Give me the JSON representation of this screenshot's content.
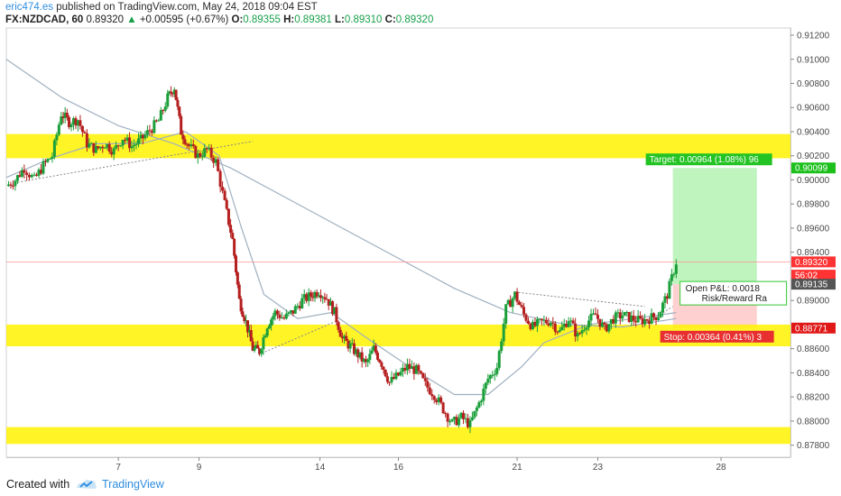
{
  "header": {
    "author": "eric474.es",
    "published": " published on TradingView.com, May 24, 2018 09:04 EST",
    "symbol": "FX:NZDCAD, 60",
    "last": "0.89320",
    "change_arrow": "▲",
    "change": "+0.00595 (+0.67%)",
    "o_label": "O:",
    "o_val": "0.89355",
    "h_label": "H:",
    "h_val": "0.89381",
    "l_label": "L:",
    "l_val": "0.89310",
    "c_label": "C:",
    "c_val": "0.89320"
  },
  "chart_data": {
    "type": "candlestick",
    "ylim": [
      0.877,
      0.9126
    ],
    "xlim": [
      0,
      70
    ],
    "y_ticks": [
      {
        "label": "0.91200",
        "value": 0.912
      },
      {
        "label": "0.91000",
        "value": 0.91
      },
      {
        "label": "0.90800",
        "value": 0.908
      },
      {
        "label": "0.90600",
        "value": 0.906
      },
      {
        "label": "0.90400",
        "value": 0.904
      },
      {
        "label": "0.90200",
        "value": 0.902
      },
      {
        "label": "0.90000",
        "value": 0.9
      },
      {
        "label": "0.89800",
        "value": 0.898
      },
      {
        "label": "0.89600",
        "value": 0.896
      },
      {
        "label": "0.89400",
        "value": 0.894
      },
      {
        "label": "0.89000",
        "value": 0.89
      },
      {
        "label": "0.88600",
        "value": 0.886
      },
      {
        "label": "0.88400",
        "value": 0.884
      },
      {
        "label": "0.88200",
        "value": 0.882
      },
      {
        "label": "0.88000",
        "value": 0.88
      },
      {
        "label": "0.87800",
        "value": 0.878
      }
    ],
    "x_ticks": [
      {
        "label": "7",
        "x": 10
      },
      {
        "label": "9",
        "x": 17.2
      },
      {
        "label": "14",
        "x": 28
      },
      {
        "label": "16",
        "x": 35
      },
      {
        "label": "21",
        "x": 45.6
      },
      {
        "label": "23",
        "x": 52.8
      },
      {
        "label": "28",
        "x": 63.8
      }
    ],
    "price_path": [
      [
        0,
        0.8995
      ],
      [
        0.8,
        0.9
      ],
      [
        1.6,
        0.901
      ],
      [
        2.5,
        0.9
      ],
      [
        3.3,
        0.9012
      ],
      [
        4.1,
        0.902
      ],
      [
        4.9,
        0.9055
      ],
      [
        5.6,
        0.9048
      ],
      [
        6.4,
        0.905
      ],
      [
        7.2,
        0.903
      ],
      [
        8.0,
        0.9025
      ],
      [
        8.8,
        0.903
      ],
      [
        9.6,
        0.9024
      ],
      [
        10.4,
        0.9035
      ],
      [
        11.2,
        0.9028
      ],
      [
        12.0,
        0.9033
      ],
      [
        12.8,
        0.9041
      ],
      [
        13.6,
        0.9049
      ],
      [
        14.4,
        0.9068
      ],
      [
        15.0,
        0.9077
      ],
      [
        15.6,
        0.904
      ],
      [
        16.3,
        0.9028
      ],
      [
        17.1,
        0.902
      ],
      [
        17.9,
        0.9025
      ],
      [
        18.7,
        0.9015
      ],
      [
        19.5,
        0.898
      ],
      [
        20.2,
        0.895
      ],
      [
        20.8,
        0.89
      ],
      [
        21.4,
        0.8882
      ],
      [
        22.0,
        0.886
      ],
      [
        22.6,
        0.8858
      ],
      [
        23.3,
        0.888
      ],
      [
        24.0,
        0.889
      ],
      [
        24.8,
        0.8885
      ],
      [
        25.6,
        0.8891
      ],
      [
        26.4,
        0.89
      ],
      [
        27.2,
        0.8904
      ],
      [
        27.9,
        0.8908
      ],
      [
        28.6,
        0.8902
      ],
      [
        29.3,
        0.889
      ],
      [
        30.0,
        0.8868
      ],
      [
        30.7,
        0.8862
      ],
      [
        31.4,
        0.8855
      ],
      [
        32.1,
        0.8847
      ],
      [
        32.8,
        0.886
      ],
      [
        33.5,
        0.8848
      ],
      [
        34.2,
        0.8832
      ],
      [
        35.0,
        0.8838
      ],
      [
        35.8,
        0.8845
      ],
      [
        36.6,
        0.8842
      ],
      [
        37.4,
        0.883
      ],
      [
        38.2,
        0.8822
      ],
      [
        39.0,
        0.881
      ],
      [
        39.8,
        0.8798
      ],
      [
        40.6,
        0.8803
      ],
      [
        41.4,
        0.8797
      ],
      [
        42.2,
        0.8815
      ],
      [
        43.0,
        0.8835
      ],
      [
        43.8,
        0.8845
      ],
      [
        44.6,
        0.8893
      ],
      [
        45.4,
        0.8905
      ],
      [
        46.2,
        0.8888
      ],
      [
        47.0,
        0.8878
      ],
      [
        47.8,
        0.8882
      ],
      [
        48.6,
        0.8883
      ],
      [
        49.4,
        0.8874
      ],
      [
        50.2,
        0.8885
      ],
      [
        51.0,
        0.887
      ],
      [
        51.8,
        0.8882
      ],
      [
        52.6,
        0.8888
      ],
      [
        53.4,
        0.8876
      ],
      [
        54.2,
        0.8885
      ],
      [
        55.0,
        0.8888
      ],
      [
        55.8,
        0.8885
      ],
      [
        56.6,
        0.8883
      ],
      [
        57.4,
        0.8885
      ],
      [
        58.2,
        0.8888
      ],
      [
        59.0,
        0.8905
      ],
      [
        59.8,
        0.8932
      ]
    ],
    "slow_ma": [
      [
        0,
        0.91
      ],
      [
        5,
        0.9068
      ],
      [
        10,
        0.9045
      ],
      [
        15,
        0.903
      ],
      [
        20,
        0.901
      ],
      [
        25,
        0.8985
      ],
      [
        30,
        0.896
      ],
      [
        35,
        0.8935
      ],
      [
        40,
        0.891
      ],
      [
        45,
        0.889
      ],
      [
        50,
        0.888
      ],
      [
        55,
        0.8878
      ],
      [
        59.8,
        0.8885
      ]
    ],
    "fast_ma": [
      [
        0,
        0.9002
      ],
      [
        4,
        0.9018
      ],
      [
        8,
        0.903
      ],
      [
        12,
        0.903
      ],
      [
        16,
        0.904
      ],
      [
        19,
        0.902
      ],
      [
        21,
        0.896
      ],
      [
        23,
        0.8905
      ],
      [
        26,
        0.8885
      ],
      [
        29,
        0.889
      ],
      [
        32,
        0.887
      ],
      [
        36,
        0.8845
      ],
      [
        40,
        0.8822
      ],
      [
        43,
        0.8822
      ],
      [
        46,
        0.8845
      ],
      [
        48,
        0.8865
      ],
      [
        52,
        0.888
      ],
      [
        56,
        0.8885
      ],
      [
        59.8,
        0.889
      ]
    ],
    "zones": [
      {
        "from": 0.9018,
        "to": 0.9038,
        "color": "#fff200"
      },
      {
        "from": 0.8862,
        "to": 0.888,
        "color": "#fff200"
      },
      {
        "from": 0.8781,
        "to": 0.8795,
        "color": "#fff200"
      }
    ],
    "trendlines": [
      {
        "from": [
          1,
          0.8998
        ],
        "to": [
          22,
          0.9032
        ]
      },
      {
        "from": [
          22.5,
          0.8855
        ],
        "to": [
          29.5,
          0.8883
        ]
      },
      {
        "from": [
          45.4,
          0.8907
        ],
        "to": [
          57,
          0.8895
        ]
      },
      {
        "from": [
          57,
          0.888
        ],
        "to": [
          59.5,
          0.8895
        ]
      }
    ],
    "position": {
      "x_from": 59.5,
      "x_to": 67,
      "entry": 0.89135,
      "target": 0.90099,
      "stop": 0.88771,
      "profit_color": "#b4f2b4",
      "loss_color": "#ffc8c8",
      "target_text": "Target: 0.00964 (1.08%) 96",
      "stop_text": "Stop: 0.00364 (0.41%) 3",
      "pnl_text": "Open P&L: 0.0018",
      "rr_text": "Risk/Reward Ra"
    },
    "price_badges": [
      {
        "label": "0.90099",
        "value": 0.90099,
        "bg": "#1bc01b",
        "fg": "#000000"
      },
      {
        "label": "0.89320",
        "value": 0.8932,
        "bg": "#ff3333",
        "fg": "#ffffff"
      },
      {
        "label": "56:02",
        "value": 0.8921,
        "bg": "#ff3333",
        "fg": "#ffffff"
      },
      {
        "label": "0.89135",
        "value": 0.89135,
        "bg": "#555555",
        "fg": "#ffffff"
      },
      {
        "label": "0.88771",
        "value": 0.88771,
        "bg": "#e01818",
        "fg": "#ffffff"
      }
    ],
    "current_price_line": {
      "value": 0.8932,
      "color": "#ff9090"
    },
    "candle_colors": {
      "up": "#1a9f3a",
      "down": "#b51f1f"
    },
    "ma_color": "#9fb0c0",
    "grid": false
  },
  "footer": {
    "created_with": "Created with",
    "brand": "TradingView"
  }
}
